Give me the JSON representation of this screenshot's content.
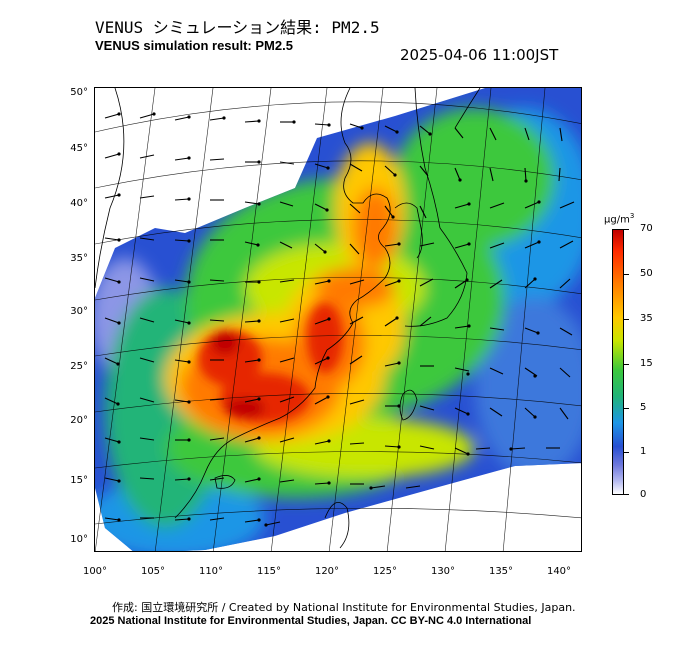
{
  "header": {
    "title_jp": "VENUS シミュレーション結果: PM2.5",
    "title_en": "VENUS simulation result: PM2.5",
    "timestamp": "2025-04-06 11:00JST"
  },
  "axes": {
    "lat_ticks": [
      "50°",
      "45°",
      "40°",
      "35°",
      "30°",
      "25°",
      "20°",
      "15°",
      "10°"
    ],
    "lon_ticks": [
      "100°",
      "105°",
      "110°",
      "115°",
      "120°",
      "125°",
      "130°",
      "135°",
      "140°"
    ]
  },
  "legend": {
    "unit_base": "µg/m",
    "unit_exp": "3",
    "ticks": [
      "70",
      "50",
      "35",
      "15",
      "5",
      "1",
      "0"
    ]
  },
  "footer": {
    "credit": "作成: 国立環境研究所 / Created by National Institute for Environmental Studies, Japan.",
    "license": "2025 National Institute for Environmental Studies, Japan. CC BY-NC 4.0 International"
  },
  "colors": {
    "very_high": "#d81e00",
    "high": "#ff8c00",
    "medium": "#3cc83c",
    "low": "#1e90e6",
    "very_low": "#6e78dc",
    "trace": "#b4b9f0"
  }
}
